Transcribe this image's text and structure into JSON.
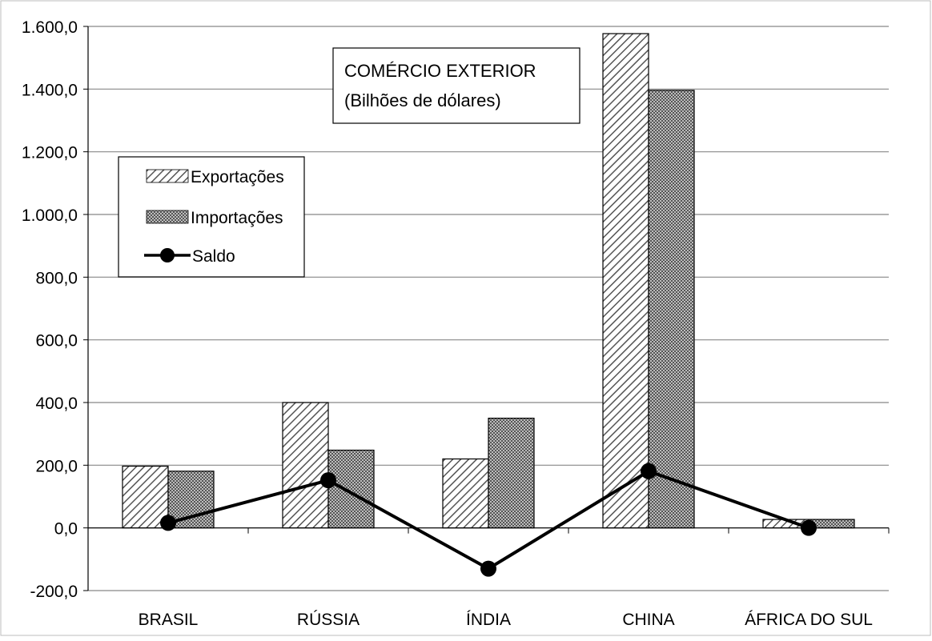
{
  "chart_data": {
    "type": "bar",
    "title": [
      "COMÉRCIO EXTERIOR",
      "(Bilhões de dólares)"
    ],
    "categories": [
      "BRASIL",
      "RÚSSIA",
      "ÍNDIA",
      "CHINA",
      "ÁFRICA DO SUL"
    ],
    "series": [
      {
        "name": "Exportações",
        "type": "bar",
        "pattern": "diagonal-hatch",
        "values": [
          197.0,
          400.0,
          220.0,
          1577.0,
          27.0
        ]
      },
      {
        "name": "Importações",
        "type": "bar",
        "pattern": "crosshatch",
        "values": [
          181.0,
          248.0,
          350.0,
          1396.0,
          27.0
        ]
      },
      {
        "name": "Saldo",
        "type": "line",
        "marker": "circle",
        "values": [
          16.0,
          152.0,
          -130.0,
          181.0,
          0.0
        ]
      }
    ],
    "yticks": [
      "-200,0",
      "0,0",
      "200,0",
      "400,0",
      "600,0",
      "800,0",
      "1.000,0",
      "1.200,0",
      "1.400,0",
      "1.600,0"
    ],
    "ylim": [
      -200,
      1600
    ],
    "ystep": 200,
    "grid": true,
    "legend_position": "left-upper",
    "colors": {
      "bar_fill": "#ffffff",
      "bar_stroke": "#000000",
      "pattern": "#555555",
      "line": "#000000",
      "grid": "#888888"
    }
  }
}
